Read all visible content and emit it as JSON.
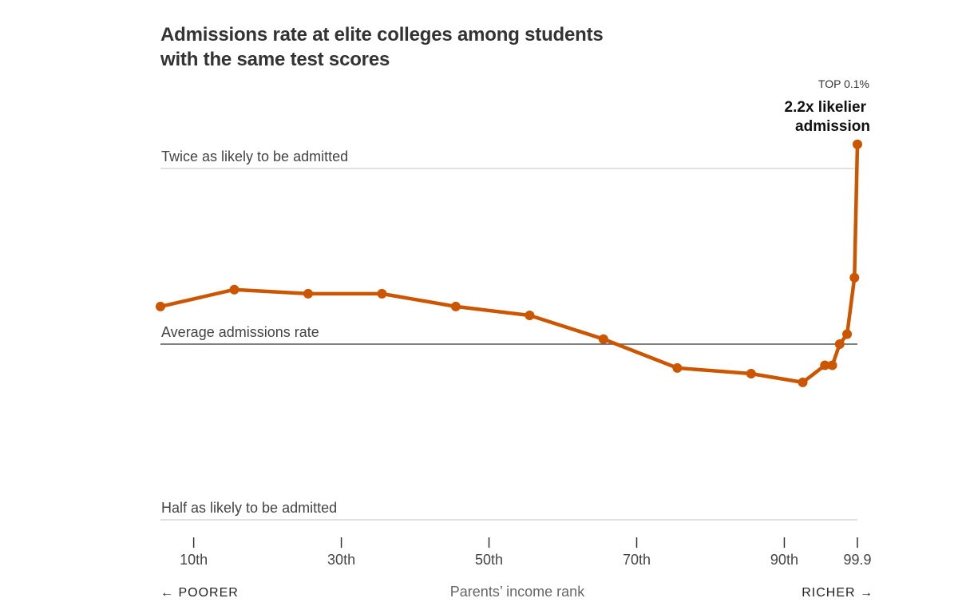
{
  "chart_data": {
    "type": "line",
    "title": "Admissions rate at elite colleges among students with the same test scores",
    "xlabel": "Parents’ income rank",
    "x_direction": {
      "left": "← POORER",
      "right": "RICHER →"
    },
    "x_ticks": [
      {
        "value": 10,
        "label": "10th"
      },
      {
        "value": 30,
        "label": "30th"
      },
      {
        "value": 50,
        "label": "50th"
      },
      {
        "value": 70,
        "label": "70th"
      },
      {
        "value": 90,
        "label": "90th"
      },
      {
        "value": 99.9,
        "label": "99.9"
      }
    ],
    "xlim": [
      5.5,
      99.9
    ],
    "y_scale": "log2",
    "ylim": [
      0.5,
      2.0
    ],
    "reference_lines": [
      {
        "value": 2.0,
        "label": "Twice as likely to be admitted"
      },
      {
        "value": 1.0,
        "label": "Average admissions rate"
      },
      {
        "value": 0.5,
        "label": "Half as likely to be admitted"
      }
    ],
    "series": [
      {
        "color": "#cc5500",
        "points": [
          {
            "x": 5.5,
            "y": 1.16
          },
          {
            "x": 15.5,
            "y": 1.24
          },
          {
            "x": 25.5,
            "y": 1.22
          },
          {
            "x": 35.5,
            "y": 1.22
          },
          {
            "x": 45.5,
            "y": 1.16
          },
          {
            "x": 55.5,
            "y": 1.12
          },
          {
            "x": 65.5,
            "y": 1.02
          },
          {
            "x": 75.5,
            "y": 0.91
          },
          {
            "x": 85.5,
            "y": 0.89
          },
          {
            "x": 92.5,
            "y": 0.86
          },
          {
            "x": 95.5,
            "y": 0.92
          },
          {
            "x": 96.5,
            "y": 0.92
          },
          {
            "x": 97.5,
            "y": 1.0
          },
          {
            "x": 98.5,
            "y": 1.04
          },
          {
            "x": 99.5,
            "y": 1.3
          },
          {
            "x": 99.9,
            "y": 2.2
          }
        ]
      }
    ],
    "annotation": {
      "kicker": "TOP 0.1%",
      "line1": "2.2x likelier",
      "line2": "admission"
    },
    "grid": false
  }
}
